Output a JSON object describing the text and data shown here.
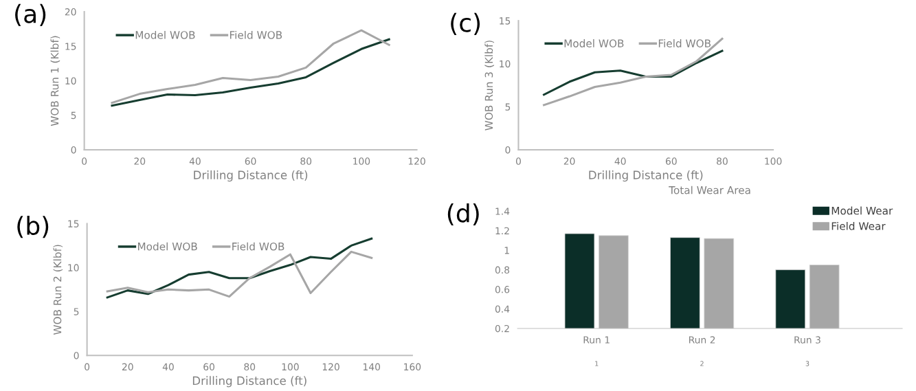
{
  "chart_data": [
    {
      "type": "line",
      "xlabel": "Drilling Distance (ft)",
      "ylabel": "WOB Run 1 (Klbf)",
      "annotations": [
        "(a)"
      ],
      "x": [
        10,
        20,
        30,
        40,
        50,
        60,
        70,
        80,
        90,
        100,
        110
      ],
      "series": [
        {
          "name": "Model WOB",
          "color": "#163d30",
          "values": [
            6.4,
            7.2,
            8.0,
            7.9,
            8.3,
            9.0,
            9.6,
            10.5,
            12.6,
            14.6,
            16.0
          ]
        },
        {
          "name": "Field WOB",
          "color": "#a6a6a6",
          "values": [
            6.8,
            8.1,
            8.8,
            9.4,
            10.4,
            10.1,
            10.6,
            11.9,
            15.4,
            17.3,
            15.2
          ]
        }
      ],
      "xlim": [
        0,
        120
      ],
      "xticks": [
        0,
        20,
        40,
        60,
        80,
        100,
        120
      ],
      "ylim": [
        0,
        20
      ],
      "yticks": [
        0,
        5,
        10,
        15,
        20
      ],
      "grid": false,
      "legend": "top left",
      "line_style": "solid"
    },
    {
      "type": "line",
      "xlabel": "Drilling Distance (ft)",
      "ylabel": "WOB Run 3 (Klbf)",
      "annotations": [
        "(c)"
      ],
      "x": [
        10,
        20,
        30,
        40,
        50,
        60,
        70,
        80
      ],
      "series": [
        {
          "name": "Model WOB",
          "color": "#163d30",
          "values": [
            6.4,
            7.9,
            9.0,
            9.2,
            8.5,
            8.5,
            10.1,
            11.5
          ]
        },
        {
          "name": "Field WOB",
          "color": "#a6a6a6",
          "values": [
            5.2,
            6.2,
            7.3,
            7.8,
            8.5,
            8.7,
            10.3,
            12.9
          ]
        }
      ],
      "xlim": [
        0,
        100
      ],
      "xticks": [
        0,
        20,
        40,
        60,
        80,
        100
      ],
      "ylim": [
        0,
        15
      ],
      "yticks": [
        0,
        5,
        10,
        15
      ],
      "grid": false,
      "legend": "top left",
      "line_style": "solid"
    },
    {
      "type": "line",
      "xlabel": "Drilling Distance (ft)",
      "ylabel": "WOB Run 2 (Klbf)",
      "annotations": [
        "(b)"
      ],
      "x": [
        10,
        20,
        30,
        40,
        50,
        60,
        70,
        80,
        90,
        100,
        110,
        120,
        130,
        140
      ],
      "series": [
        {
          "name": "Model WOB",
          "color": "#163d30",
          "values": [
            6.6,
            7.4,
            7.0,
            8.0,
            9.2,
            9.5,
            8.8,
            8.8,
            9.6,
            10.3,
            11.2,
            11.0,
            12.5,
            13.3
          ]
        },
        {
          "name": "Field WOB",
          "color": "#a6a6a6",
          "values": [
            7.3,
            7.7,
            7.2,
            7.5,
            7.4,
            7.5,
            6.7,
            8.8,
            10.1,
            11.5,
            7.1,
            9.5,
            11.8,
            11.1
          ]
        }
      ],
      "xlim": [
        0,
        160
      ],
      "xticks": [
        0,
        20,
        40,
        60,
        80,
        100,
        120,
        140,
        160
      ],
      "ylim": [
        0,
        15
      ],
      "yticks": [
        0,
        5,
        10,
        15
      ],
      "grid": false,
      "legend": "top left",
      "line_style": "solid"
    },
    {
      "type": "bar",
      "title": "Total Wear Area",
      "annotations": [
        "(d)",
        "1",
        "2",
        "3"
      ],
      "categories": [
        "Run 1",
        "Run 2",
        "Run 3"
      ],
      "series": [
        {
          "name": "Model Wear",
          "color": "#0b2e28",
          "values": [
            1.17,
            1.13,
            0.8
          ]
        },
        {
          "name": "Field Wear",
          "color": "#a6a6a6",
          "values": [
            1.15,
            1.12,
            0.85
          ]
        }
      ],
      "ylim": [
        0.2,
        1.4
      ],
      "yticks": [
        {
          "value": 0.2,
          "label": "0.2"
        },
        {
          "value": 0.4,
          "label": "0.4"
        },
        {
          "value": 0.6,
          "label": "0.6"
        },
        {
          "value": 0.8,
          "label": "0.8"
        },
        1,
        {
          "value": 1.2,
          "label": "1.2"
        },
        {
          "value": 1.4,
          "label": "1.4"
        }
      ],
      "grid": false,
      "legend": "top right"
    }
  ]
}
